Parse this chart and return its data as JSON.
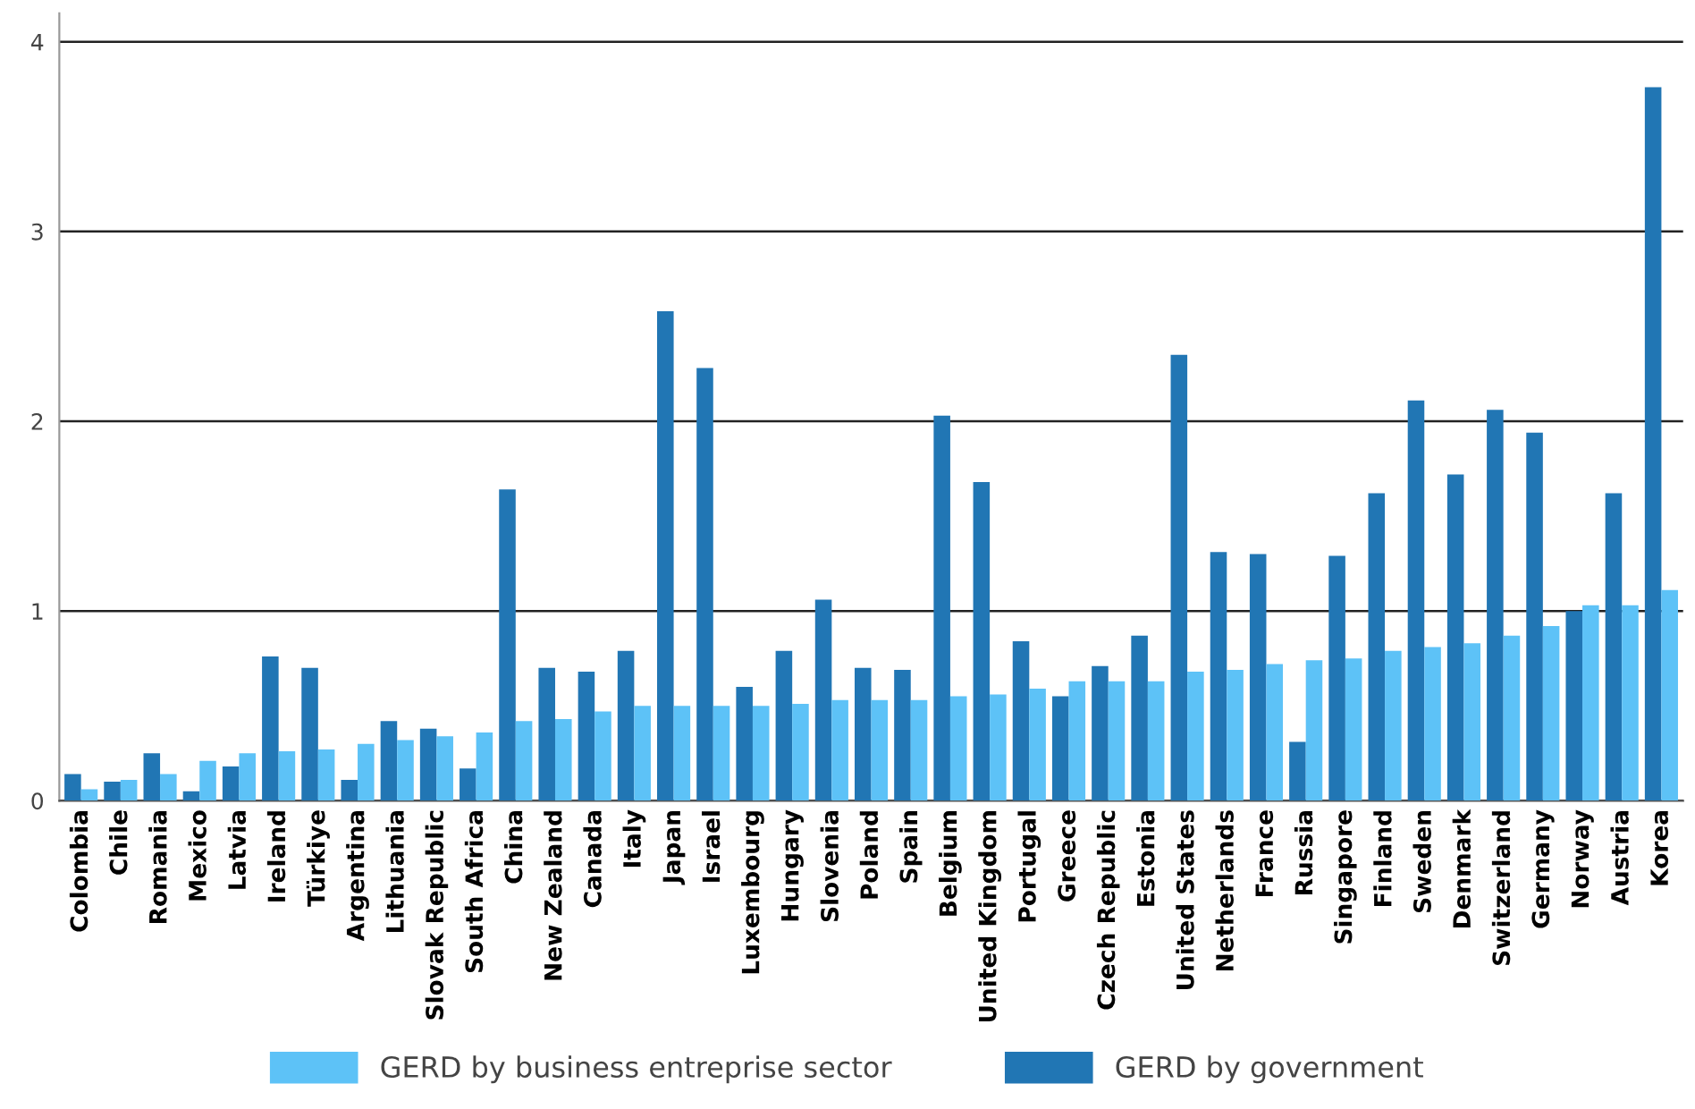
{
  "chart_data": {
    "type": "bar",
    "categories": [
      "Colombia",
      "Chile",
      "Romania",
      "Mexico",
      "Latvia",
      "Ireland",
      "Türkiye",
      "Argentina",
      "Lithuania",
      "Slovak Republic",
      "South Africa",
      "China",
      "New Zealand",
      "Canada",
      "Italy",
      "Japan",
      "Israel",
      "Luxembourg",
      "Hungary",
      "Slovenia",
      "Poland",
      "Spain",
      "Belgium",
      "United Kingdom",
      "Portugal",
      "Greece",
      "Czech Republic",
      "Estonia",
      "United States",
      "Netherlands",
      "France",
      "Russia",
      "Singapore",
      "Finland",
      "Sweden",
      "Denmark",
      "Switzerland",
      "Germany",
      "Norway",
      "Austria",
      "Korea"
    ],
    "series": [
      {
        "name": "GERD by government",
        "color": "#2176b4",
        "values": [
          0.14,
          0.1,
          0.25,
          0.05,
          0.18,
          0.76,
          0.7,
          0.11,
          0.42,
          0.38,
          0.17,
          1.64,
          0.7,
          0.68,
          0.79,
          2.58,
          2.28,
          0.6,
          0.79,
          1.06,
          0.7,
          0.69,
          2.03,
          1.68,
          0.84,
          0.55,
          0.71,
          0.87,
          2.35,
          1.31,
          1.3,
          0.31,
          1.29,
          1.62,
          2.11,
          1.72,
          2.06,
          1.94,
          1.0,
          1.62,
          3.76
        ]
      },
      {
        "name": "GERD by business entreprise sector",
        "color": "#5dc2f7",
        "values": [
          0.06,
          0.11,
          0.14,
          0.21,
          0.25,
          0.26,
          0.27,
          0.3,
          0.32,
          0.34,
          0.36,
          0.42,
          0.43,
          0.47,
          0.5,
          0.5,
          0.5,
          0.5,
          0.51,
          0.53,
          0.53,
          0.53,
          0.55,
          0.56,
          0.59,
          0.63,
          0.63,
          0.63,
          0.68,
          0.69,
          0.72,
          0.74,
          0.75,
          0.79,
          0.81,
          0.83,
          0.87,
          0.92,
          1.03,
          1.03,
          1.11
        ]
      }
    ],
    "ylim": [
      0,
      4.15
    ],
    "yticks": [
      0,
      1,
      2,
      3,
      4
    ],
    "grid": "y",
    "legend": "bottom"
  }
}
